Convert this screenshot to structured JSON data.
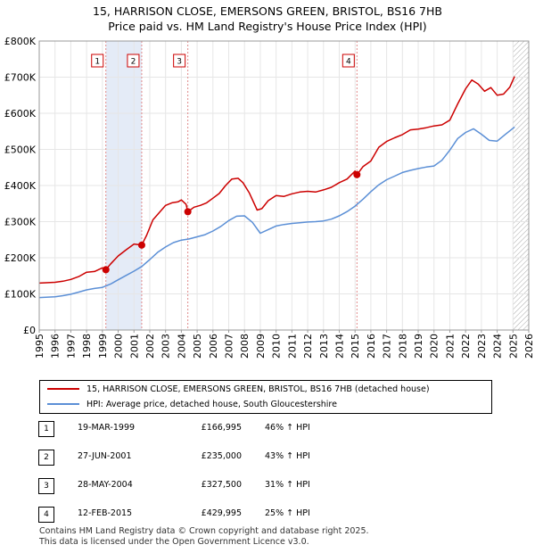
{
  "chart_data": {
    "type": "line",
    "title": "15, HARRISON CLOSE, EMERSONS GREEN, BRISTOL, BS16 7HB",
    "subtitle": "Price paid vs. HM Land Registry's House Price Index (HPI)",
    "xlabel": "",
    "ylabel": "",
    "xlim": [
      1995,
      2026
    ],
    "ylim": [
      0,
      800000
    ],
    "x_ticks": [
      "1995",
      "1996",
      "1997",
      "1998",
      "1999",
      "2000",
      "2001",
      "2002",
      "2003",
      "2004",
      "2005",
      "2006",
      "2007",
      "2008",
      "2009",
      "2010",
      "2011",
      "2012",
      "2013",
      "2014",
      "2015",
      "2016",
      "2017",
      "2018",
      "2019",
      "2020",
      "2021",
      "2022",
      "2023",
      "2024",
      "2025",
      "2026"
    ],
    "y_ticks": [
      {
        "value": 0,
        "label": "£0"
      },
      {
        "value": 100000,
        "label": "£100K"
      },
      {
        "value": 200000,
        "label": "£200K"
      },
      {
        "value": 300000,
        "label": "£300K"
      },
      {
        "value": 400000,
        "label": "£400K"
      },
      {
        "value": 500000,
        "label": "£500K"
      },
      {
        "value": 600000,
        "label": "£600K"
      },
      {
        "value": 700000,
        "label": "£700K"
      },
      {
        "value": 800000,
        "label": "£800K"
      }
    ],
    "hatch_from": 2025.0,
    "series": [
      {
        "name": "15, HARRISON CLOSE, EMERSONS GREEN, BRISTOL, BS16 7HB (detached house)",
        "color": "#cc0000",
        "x": [
          1995,
          1996,
          1996.5,
          1997,
          1997.5,
          1998,
          1998.5,
          1999,
          1999.22,
          1999.5,
          2000,
          2000.5,
          2001,
          2001.49,
          2001.8,
          2002.2,
          2002.6,
          2003,
          2003.4,
          2003.8,
          2004,
          2004.3,
          2004.41,
          2004.8,
          2005.2,
          2005.6,
          2006,
          2006.4,
          2006.8,
          2007.2,
          2007.6,
          2007.9,
          2008.3,
          2008.8,
          2009.1,
          2009.5,
          2010,
          2010.5,
          2011,
          2011.5,
          2012,
          2012.5,
          2013,
          2013.5,
          2014,
          2014.5,
          2015,
          2015.12,
          2015.5,
          2016,
          2016.5,
          2017,
          2017.5,
          2018,
          2018.5,
          2019,
          2019.5,
          2020,
          2020.5,
          2021,
          2021.5,
          2022,
          2022.4,
          2022.8,
          2023.2,
          2023.6,
          2024,
          2024.4,
          2024.8,
          2025.1
        ],
        "y": [
          130000,
          132000,
          135000,
          140000,
          148000,
          160000,
          162000,
          172000,
          166995,
          182000,
          205000,
          222000,
          238000,
          235000,
          262000,
          305000,
          325000,
          345000,
          352000,
          355000,
          360000,
          348000,
          327500,
          340000,
          345000,
          352000,
          365000,
          378000,
          400000,
          418000,
          420000,
          408000,
          380000,
          332000,
          336000,
          358000,
          372000,
          370000,
          377000,
          382000,
          384000,
          382000,
          388000,
          395000,
          408000,
          418000,
          440000,
          429995,
          452000,
          468000,
          506000,
          522000,
          532000,
          541000,
          554000,
          556000,
          560000,
          565000,
          568000,
          581000,
          626000,
          668000,
          692000,
          681000,
          661000,
          671000,
          650000,
          653000,
          672000,
          702000
        ]
      },
      {
        "name": "HPI: Average price, detached house, South Gloucestershire",
        "color": "#5b8fd6",
        "x": [
          1995,
          1996,
          1996.5,
          1997,
          1997.5,
          1998,
          1998.5,
          1999,
          1999.5,
          2000,
          2000.5,
          2001,
          2001.5,
          2002,
          2002.5,
          2003,
          2003.5,
          2004,
          2004.5,
          2005,
          2005.5,
          2006,
          2006.5,
          2007,
          2007.5,
          2008,
          2008.5,
          2009,
          2009.5,
          2010,
          2010.5,
          2011,
          2011.5,
          2012,
          2012.5,
          2013,
          2013.5,
          2014,
          2014.5,
          2015,
          2015.5,
          2016,
          2016.5,
          2017,
          2017.5,
          2018,
          2018.5,
          2019,
          2019.5,
          2020,
          2020.5,
          2021,
          2021.5,
          2022,
          2022.5,
          2023,
          2023.5,
          2024,
          2024.5,
          2025.1
        ],
        "y": [
          90000,
          92000,
          95000,
          99000,
          105000,
          111000,
          115000,
          118000,
          127000,
          139000,
          151000,
          163000,
          176000,
          195000,
          215000,
          230000,
          242000,
          249000,
          252000,
          258000,
          264000,
          274000,
          287000,
          303000,
          315000,
          316000,
          298000,
          268000,
          278000,
          288000,
          292000,
          295000,
          297000,
          299000,
          300000,
          302000,
          307000,
          316000,
          328000,
          343000,
          362000,
          383000,
          402000,
          416000,
          426000,
          436000,
          442000,
          447000,
          451000,
          454000,
          470000,
          498000,
          530000,
          547000,
          557000,
          542000,
          525000,
          523000,
          541000,
          562000
        ]
      }
    ],
    "sales": [
      {
        "num": "1",
        "x": 1999.22,
        "y": 166995
      },
      {
        "num": "2",
        "x": 2001.49,
        "y": 235000
      },
      {
        "num": "3",
        "x": 2004.41,
        "y": 327500
      },
      {
        "num": "4",
        "x": 2015.12,
        "y": 429995
      }
    ]
  },
  "legend": {
    "property_label": "15, HARRISON CLOSE, EMERSONS GREEN, BRISTOL, BS16 7HB (detached house)",
    "hpi_label": "HPI: Average price, detached house, South Gloucestershire",
    "property_color": "#cc0000",
    "hpi_color": "#5b8fd6"
  },
  "sales_table": [
    {
      "num": "1",
      "date": "19-MAR-1999",
      "price": "£166,995",
      "hpi": "46% ↑ HPI"
    },
    {
      "num": "2",
      "date": "27-JUN-2001",
      "price": "£235,000",
      "hpi": "43% ↑ HPI"
    },
    {
      "num": "3",
      "date": "28-MAY-2004",
      "price": "£327,500",
      "hpi": "31% ↑ HPI"
    },
    {
      "num": "4",
      "date": "12-FEB-2015",
      "price": "£429,995",
      "hpi": "25% ↑ HPI"
    }
  ],
  "footer": {
    "line1": "Contains HM Land Registry data © Crown copyright and database right 2025.",
    "line2": "This data is licensed under the Open Government Licence v3.0."
  }
}
